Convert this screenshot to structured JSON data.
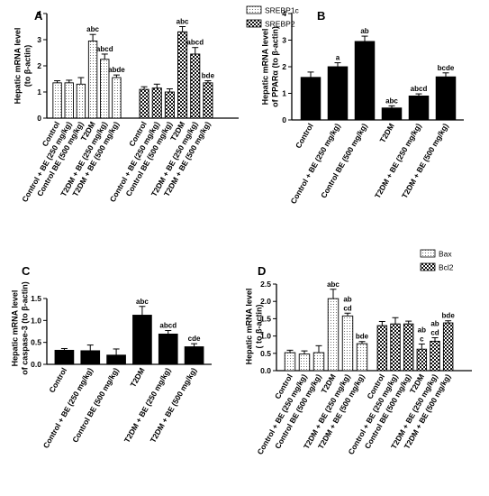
{
  "conditions": [
    "Control",
    "Control + BE (250 mg/kg)",
    "Control BE (500 mg/kg)",
    "T2DM",
    "T2DM + BE (250 mg/kg)",
    "T2DM + BE (500 mg/kg)"
  ],
  "colors": {
    "bar_dark": "#000000",
    "bar_light": "#ffffff",
    "axis": "#000000",
    "text": "#000000"
  },
  "chart_data": [
    {
      "panel": "A",
      "type": "bar",
      "ylabel": "Hepatic mRNA level\n(to β-actin)",
      "ylim": [
        0,
        4
      ],
      "yticks": [
        0,
        1,
        2,
        3,
        4
      ],
      "legend": {
        "placement": "top-right",
        "entries": [
          "SREBP1c",
          "SREBP2"
        ]
      },
      "categories": [
        "Control",
        "Control + BE (250 mg/kg)",
        "Control BE (500 mg/kg)",
        "T2DM",
        "T2DM + BE (250 mg/kg)",
        "T2DM + BE (500 mg/kg)"
      ],
      "series": [
        {
          "name": "SREBP1c",
          "pattern": "dots",
          "values": [
            1.35,
            1.35,
            1.3,
            2.95,
            2.25,
            1.55
          ],
          "errors": [
            0.08,
            0.1,
            0.25,
            0.25,
            0.2,
            0.1
          ],
          "labels": [
            "",
            "",
            "",
            "abc",
            "abcd",
            "abde"
          ]
        },
        {
          "name": "SREBP2",
          "pattern": "checker",
          "values": [
            1.1,
            1.15,
            1.0,
            3.3,
            2.45,
            1.35
          ],
          "errors": [
            0.1,
            0.15,
            0.12,
            0.2,
            0.25,
            0.08
          ],
          "labels": [
            "",
            "",
            "",
            "abc",
            "abcd",
            "bde"
          ]
        }
      ]
    },
    {
      "panel": "B",
      "type": "bar",
      "ylabel": "Hepatic mRNA level\nof PPARα (to β-actin)",
      "ylim": [
        0,
        4
      ],
      "yticks": [
        0,
        1,
        2,
        3,
        4
      ],
      "categories": [
        "Control",
        "Control + BE (250 mg/kg)",
        "Control BE (500 mg/kg)",
        "T2DM",
        "T2DM + BE (250 mg/kg)",
        "T2DM + BE (500 mg/kg)"
      ],
      "series": [
        {
          "name": "",
          "pattern": "solid",
          "values": [
            1.6,
            2.0,
            2.95,
            0.45,
            0.9,
            1.62
          ],
          "errors": [
            0.2,
            0.15,
            0.2,
            0.08,
            0.08,
            0.15
          ],
          "labels": [
            "",
            "a",
            "ab",
            "abc",
            "abcd",
            "bcde"
          ]
        }
      ]
    },
    {
      "panel": "C",
      "type": "bar",
      "ylabel": "Hepatic mRNA level\nof caspase-3 (to β-actin)",
      "ylim": [
        0,
        1.5
      ],
      "yticks": [
        0.0,
        0.5,
        1.0,
        1.5
      ],
      "categories": [
        "Control",
        "Control + BE (250 mg/kg)",
        "Control BE (500 mg/kg)",
        "T2DM",
        "T2DM + BE (250 mg/kg)",
        "T2DM + BE (500 mg/kg)"
      ],
      "series": [
        {
          "name": "",
          "pattern": "solid",
          "values": [
            0.32,
            0.31,
            0.21,
            1.12,
            0.69,
            0.4
          ],
          "errors": [
            0.04,
            0.13,
            0.14,
            0.2,
            0.08,
            0.07
          ],
          "labels": [
            "",
            "",
            "",
            "abc",
            "abcd",
            "cde"
          ]
        }
      ]
    },
    {
      "panel": "D",
      "type": "bar",
      "ylabel": "Hepatic mRNA level\n( to β-actin)",
      "ylim": [
        0,
        2.5
      ],
      "yticks": [
        0.0,
        0.5,
        1.0,
        1.5,
        2.0,
        2.5
      ],
      "legend": {
        "placement": "top-right",
        "entries": [
          "Bax",
          "Bcl2"
        ]
      },
      "categories": [
        "Control",
        "Control + BE (250 mg/kg)",
        "Control BE (500 mg/kg)",
        "T2DM",
        "T2DM + BE (250 mg/kg)",
        "T2DM + BE (500 mg/kg)"
      ],
      "series": [
        {
          "name": "Bax",
          "pattern": "dots",
          "values": [
            0.52,
            0.48,
            0.52,
            2.08,
            1.58,
            0.78
          ],
          "errors": [
            0.07,
            0.09,
            0.2,
            0.27,
            0.08,
            0.06
          ],
          "labels": [
            "",
            "",
            "",
            "abc",
            "ab\ncd",
            "bde"
          ]
        },
        {
          "name": "Bcl2",
          "pattern": "checker",
          "values": [
            1.3,
            1.35,
            1.35,
            0.62,
            0.85,
            1.38
          ],
          "errors": [
            0.12,
            0.18,
            0.08,
            0.15,
            0.1,
            0.06
          ],
          "labels": [
            "",
            "",
            "",
            "ab\nc",
            "ab\ncd",
            "bde"
          ]
        }
      ]
    }
  ]
}
